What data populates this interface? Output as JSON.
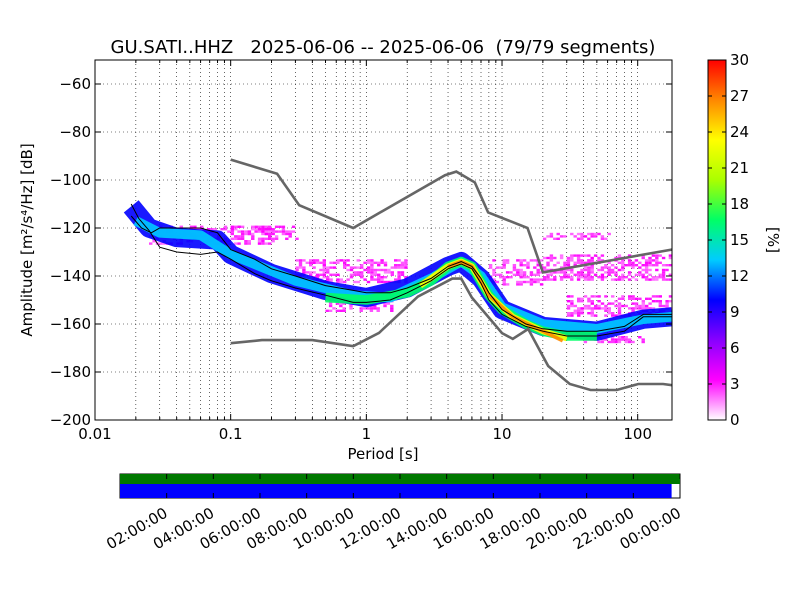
{
  "chart_data": {
    "type": "heatmap",
    "title": "GU.SATI..HHZ   2025-06-06 -- 2025-06-06  (79/79 segments)",
    "xlabel": "Period [s]",
    "ylabel": "Amplitude [m²/s⁴/Hz] [dB]",
    "xscale": "log",
    "xlim": [
      0.01,
      179
    ],
    "ylim": [
      -200,
      -50
    ],
    "grid": true,
    "x_ticks": [
      {
        "value": 0.01,
        "label": "0.01"
      },
      {
        "value": 0.1,
        "label": "0.1"
      },
      {
        "value": 1,
        "label": "1"
      },
      {
        "value": 10,
        "label": "10"
      },
      {
        "value": 100,
        "label": "100"
      }
    ],
    "y_ticks": [
      {
        "value": -200,
        "label": "−200"
      },
      {
        "value": -180,
        "label": "−180"
      },
      {
        "value": -160,
        "label": "−160"
      },
      {
        "value": -140,
        "label": "−140"
      },
      {
        "value": -120,
        "label": "−120"
      },
      {
        "value": -100,
        "label": "−100"
      },
      {
        "value": -80,
        "label": "−80"
      },
      {
        "value": -60,
        "label": "−60"
      }
    ],
    "colorbar": {
      "label": "[%]",
      "range": [
        0,
        30
      ],
      "ticks": [
        "0",
        "3",
        "6",
        "9",
        "12",
        "15",
        "18",
        "21",
        "24",
        "27",
        "30"
      ],
      "colors": [
        "#ffffff",
        "#ff00ff",
        "#8800ff",
        "#0000ff",
        "#00ccff",
        "#00ff66",
        "#aaff00",
        "#ffff00",
        "#ff8800",
        "#ff0000"
      ]
    },
    "noise_models": {
      "high": [
        [
          0.1,
          -91.5
        ],
        [
          0.22,
          -97.4
        ],
        [
          0.32,
          -110.5
        ],
        [
          0.8,
          -120
        ],
        [
          3.8,
          -98
        ],
        [
          4.6,
          -96.5
        ],
        [
          6.3,
          -101
        ],
        [
          7.9,
          -113.5
        ],
        [
          15.4,
          -120
        ],
        [
          20,
          -138.5
        ],
        [
          354,
          -126
        ]
      ],
      "low": [
        [
          0.1,
          -168
        ],
        [
          0.17,
          -166.7
        ],
        [
          0.4,
          -166.7
        ],
        [
          0.8,
          -169.2
        ],
        [
          1.24,
          -163.7
        ],
        [
          2.4,
          -148.6
        ],
        [
          4.3,
          -141.1
        ],
        [
          5,
          -141.1
        ],
        [
          6,
          -149
        ],
        [
          10,
          -163.8
        ],
        [
          12,
          -166.2
        ],
        [
          15.6,
          -162.1
        ],
        [
          21.9,
          -177.5
        ],
        [
          31.6,
          -185
        ],
        [
          45,
          -187.5
        ],
        [
          70,
          -187.5
        ],
        [
          101,
          -185
        ],
        [
          154,
          -185
        ],
        [
          328,
          -187.5
        ]
      ]
    },
    "percentile_lines": [
      {
        "points": [
          [
            0.0185,
            -110
          ],
          [
            0.021,
            -116
          ],
          [
            0.025,
            -121
          ],
          [
            0.03,
            -128
          ],
          [
            0.04,
            -130
          ],
          [
            0.06,
            -131
          ],
          [
            0.08,
            -130
          ],
          [
            0.1,
            -133
          ],
          [
            0.15,
            -139
          ],
          [
            0.2,
            -142
          ],
          [
            0.3,
            -145
          ],
          [
            0.5,
            -148
          ],
          [
            0.8,
            -151
          ],
          [
            1,
            -151
          ],
          [
            1.5,
            -150
          ],
          [
            2,
            -147
          ],
          [
            3,
            -142
          ],
          [
            4,
            -137
          ],
          [
            5,
            -135
          ],
          [
            6,
            -137
          ],
          [
            7,
            -143
          ],
          [
            8,
            -150
          ],
          [
            10,
            -156
          ],
          [
            15,
            -161
          ],
          [
            20,
            -163
          ],
          [
            30,
            -165
          ],
          [
            50,
            -165
          ],
          [
            80,
            -163
          ],
          [
            110,
            -157
          ],
          [
            179,
            -157
          ]
        ]
      },
      {
        "points": [
          [
            0.0185,
            -115
          ],
          [
            0.022,
            -120
          ],
          [
            0.026,
            -122
          ],
          [
            0.03,
            -120
          ],
          [
            0.04,
            -120
          ],
          [
            0.06,
            -120
          ],
          [
            0.08,
            -122
          ],
          [
            0.1,
            -129
          ],
          [
            0.15,
            -133
          ],
          [
            0.2,
            -137
          ],
          [
            0.3,
            -140
          ],
          [
            0.5,
            -144
          ],
          [
            0.8,
            -146
          ],
          [
            1,
            -147
          ],
          [
            1.5,
            -147
          ],
          [
            2,
            -145
          ],
          [
            3,
            -141
          ],
          [
            4,
            -136
          ],
          [
            5,
            -134
          ],
          [
            6,
            -136
          ],
          [
            7,
            -141
          ],
          [
            8,
            -147
          ],
          [
            10,
            -154
          ],
          [
            15,
            -160
          ],
          [
            20,
            -162
          ],
          [
            30,
            -163
          ],
          [
            50,
            -163
          ],
          [
            80,
            -161
          ],
          [
            110,
            -156
          ],
          [
            179,
            -156
          ]
        ]
      }
    ],
    "density_bands": [
      {
        "points": [
          [
            0.0185,
            -111
          ],
          [
            0.025,
            -120
          ],
          [
            0.04,
            -124
          ],
          [
            0.08,
            -125
          ],
          [
            0.1,
            -131
          ],
          [
            0.2,
            -139
          ],
          [
            0.5,
            -146
          ],
          [
            1,
            -149
          ],
          [
            2,
            -145
          ],
          [
            4,
            -136
          ],
          [
            5,
            -134
          ],
          [
            7,
            -141
          ],
          [
            10,
            -154
          ],
          [
            20,
            -161
          ],
          [
            50,
            -163
          ],
          [
            110,
            -158
          ],
          [
            179,
            -157
          ]
        ],
        "width": 8,
        "color": "#0000ff"
      },
      {
        "points": [
          [
            0.02,
            -117
          ],
          [
            0.03,
            -122
          ],
          [
            0.06,
            -123
          ],
          [
            0.1,
            -131
          ],
          [
            0.3,
            -142
          ],
          [
            0.8,
            -148
          ],
          [
            1.5,
            -149
          ],
          [
            3,
            -141
          ],
          [
            5,
            -134
          ],
          [
            7,
            -140
          ],
          [
            10,
            -153
          ],
          [
            20,
            -160
          ],
          [
            50,
            -162
          ],
          [
            110,
            -158
          ],
          [
            179,
            -157
          ]
        ],
        "width": 4,
        "color": "#00ccff"
      },
      {
        "points": [
          [
            0.5,
            -149
          ],
          [
            1,
            -150
          ],
          [
            2,
            -147
          ],
          [
            3,
            -142
          ],
          [
            4,
            -136
          ],
          [
            5,
            -134
          ],
          [
            6,
            -136
          ],
          [
            8,
            -148
          ],
          [
            10,
            -154
          ],
          [
            15,
            -160
          ],
          [
            20,
            -163
          ],
          [
            30,
            -165
          ],
          [
            50,
            -165
          ]
        ],
        "width": 4,
        "color": "#00ff66"
      },
      {
        "points": [
          [
            2.5,
            -144
          ],
          [
            4,
            -136
          ],
          [
            5,
            -134
          ],
          [
            6,
            -136
          ],
          [
            8,
            -148
          ],
          [
            12,
            -157
          ],
          [
            20,
            -163
          ],
          [
            30,
            -166
          ]
        ],
        "width": 2.5,
        "color": "#ffff00"
      },
      {
        "points": [
          [
            4,
            -136
          ],
          [
            5,
            -134
          ],
          [
            6,
            -136
          ],
          [
            8,
            -148
          ],
          [
            12,
            -157
          ],
          [
            20,
            -163
          ],
          [
            28,
            -167
          ]
        ],
        "width": 1.5,
        "color": "#ff8800"
      }
    ],
    "sparse_regions": [
      {
        "x": [
          0.025,
          0.2
        ],
        "y": [
          -127,
          -119
        ],
        "color": "#ff00ff"
      },
      {
        "x": [
          0.1,
          0.3
        ],
        "y": [
          -125,
          -119
        ],
        "color": "#ff00ff"
      },
      {
        "x": [
          0.3,
          2
        ],
        "y": [
          -142,
          -133
        ],
        "color": "#ff00ff"
      },
      {
        "x": [
          0.5,
          1.5
        ],
        "y": [
          -154,
          -150
        ],
        "color": "#ff00ff"
      },
      {
        "x": [
          8,
          20
        ],
        "y": [
          -143,
          -133
        ],
        "color": "#ff00ff"
      },
      {
        "x": [
          20,
          60
        ],
        "y": [
          -125,
          -122
        ],
        "color": "#ff00ff"
      },
      {
        "x": [
          20,
          179
        ],
        "y": [
          -141,
          -131
        ],
        "color": "#ff00ff"
      },
      {
        "x": [
          30,
          179
        ],
        "y": [
          -156,
          -148
        ],
        "color": "#ff00ff"
      },
      {
        "x": [
          40,
          110
        ],
        "y": [
          -167,
          -165
        ],
        "color": "#ff00ff"
      }
    ],
    "availability": {
      "time_ticks": [
        "02:00:00",
        "04:00:00",
        "06:00:00",
        "08:00:00",
        "10:00:00",
        "12:00:00",
        "14:00:00",
        "16:00:00",
        "18:00:00",
        "20:00:00",
        "22:00:00",
        "00:00:00"
      ],
      "data_coverage": [
        0,
        1
      ],
      "gap_coverage": [
        0,
        0.985
      ],
      "data_color": "#007800",
      "gap_color": "#0000ff"
    }
  }
}
